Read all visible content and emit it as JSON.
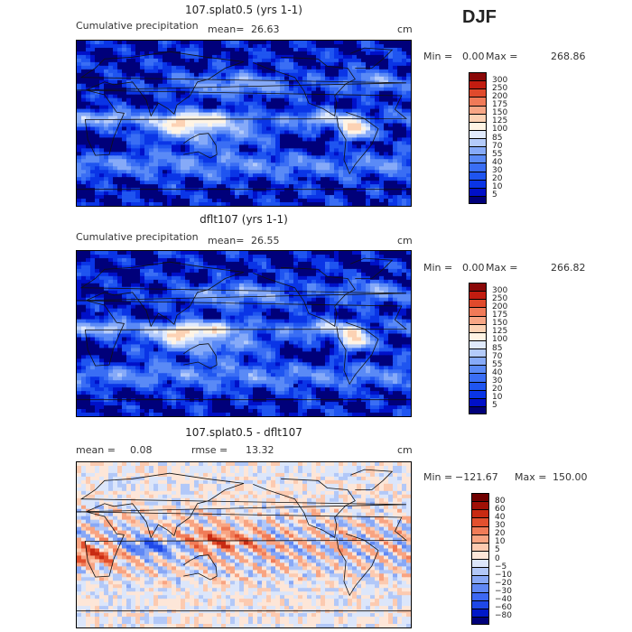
{
  "season": "DJF",
  "panels": [
    {
      "title": "107.splat0.5 (yrs 1-1)",
      "var_label": "Cumulative precipitation",
      "mean_label": "mean=",
      "mean_value": "26.63",
      "units": "cm",
      "min_label": "Min =",
      "min_value": "0.00",
      "max_label": "Max =",
      "max_value": "268.86"
    },
    {
      "title": "dflt107 (yrs 1-1)",
      "var_label": "Cumulative precipitation",
      "mean_label": "mean=",
      "mean_value": "26.55",
      "units": "cm",
      "min_label": "Min =",
      "min_value": "0.00",
      "max_label": "Max =",
      "max_value": "266.82"
    },
    {
      "title": "107.splat0.5 - dflt107",
      "mean_label": "mean =",
      "mean_value": "0.08",
      "rmse_label": "rmse =",
      "rmse_value": "13.32",
      "units": "cm",
      "min_label": "Min =",
      "min_value": "−121.67",
      "max_label": "Max =",
      "max_value": "150.00"
    }
  ],
  "chart_data": [
    {
      "type": "heatmap",
      "title": "107.splat0.5 (yrs 1-1)",
      "colorbar_levels": [
        "5",
        "10",
        "20",
        "30",
        "40",
        "55",
        "70",
        "85",
        "100",
        "125",
        "150",
        "175",
        "200",
        "250",
        "300"
      ],
      "colors": [
        "#00007a",
        "#0010c8",
        "#0a35e6",
        "#1f55f0",
        "#3a6ef4",
        "#5a8af6",
        "#86aaf8",
        "#b4cbfa",
        "#e0eafc",
        "#fff4e4",
        "#fcd2b4",
        "#f7a685",
        "#f07a58",
        "#e04a2c",
        "#c21c10",
        "#8a0808"
      ],
      "min": 0.0,
      "max": 268.86,
      "mean": 26.63
    },
    {
      "type": "heatmap",
      "title": "dflt107 (yrs 1-1)",
      "colorbar_levels": [
        "5",
        "10",
        "20",
        "30",
        "40",
        "55",
        "70",
        "85",
        "100",
        "125",
        "150",
        "175",
        "200",
        "250",
        "300"
      ],
      "colors": [
        "#00007a",
        "#0010c8",
        "#0a35e6",
        "#1f55f0",
        "#3a6ef4",
        "#5a8af6",
        "#86aaf8",
        "#b4cbfa",
        "#e0eafc",
        "#fff4e4",
        "#fcd2b4",
        "#f7a685",
        "#f07a58",
        "#e04a2c",
        "#c21c10",
        "#8a0808"
      ],
      "min": 0.0,
      "max": 266.82,
      "mean": 26.55
    },
    {
      "type": "heatmap",
      "title": "107.splat0.5 - dflt107",
      "colorbar_levels": [
        "−80",
        "−60",
        "−40",
        "−30",
        "−20",
        "−10",
        "−5",
        "0",
        "5",
        "10",
        "20",
        "30",
        "40",
        "60",
        "80"
      ],
      "colors": [
        "#00007a",
        "#0018c8",
        "#1e48e8",
        "#3d68f2",
        "#6088f4",
        "#88a8f6",
        "#b2c8f8",
        "#dce6fa",
        "#fde6d8",
        "#fccab0",
        "#f8a482",
        "#f07c58",
        "#e2502e",
        "#c82a12",
        "#a01006",
        "#700000"
      ],
      "min": -121.67,
      "max": 150.0,
      "mean": 0.08,
      "rmse": 13.32
    }
  ]
}
